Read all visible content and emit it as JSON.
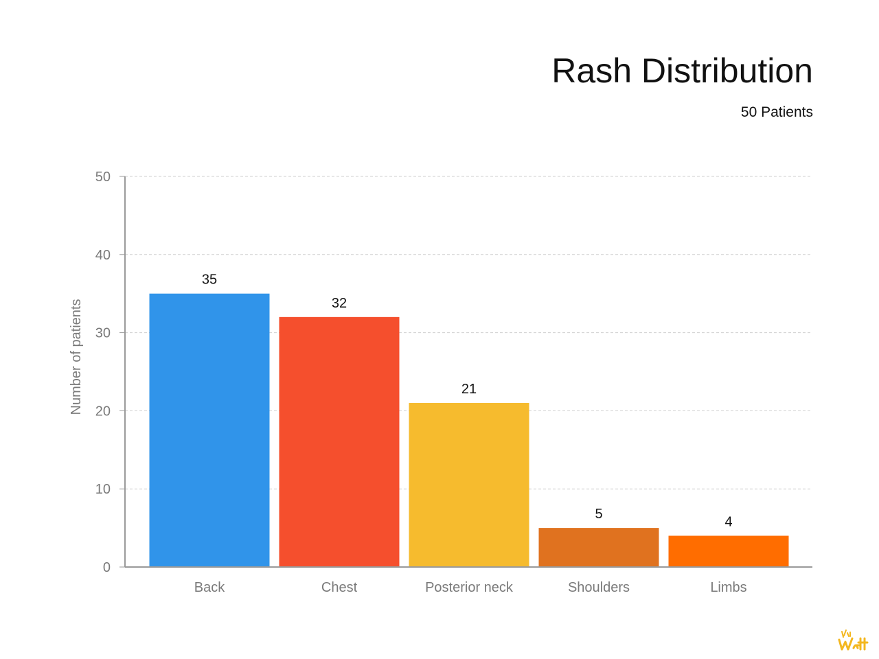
{
  "chart_data": {
    "type": "bar",
    "title": "Rash Distribution",
    "subtitle": "50 Patients",
    "ylabel": "Number of patients",
    "xlabel": "",
    "categories": [
      "Back",
      "Chest",
      "Posterior neck",
      "Shoulders",
      "Limbs"
    ],
    "values": [
      35,
      32,
      21,
      5,
      4
    ],
    "colors": [
      "#3094ea",
      "#f54f2d",
      "#f6bb2e",
      "#e0721f",
      "#ff6d00"
    ],
    "ylim": [
      0,
      50
    ],
    "yticks": [
      0,
      10,
      20,
      30,
      40,
      50
    ],
    "grid": true,
    "legend": "none"
  },
  "branding": {
    "logo_text": "Kai Watt",
    "logo_color": "#f3b71f"
  }
}
